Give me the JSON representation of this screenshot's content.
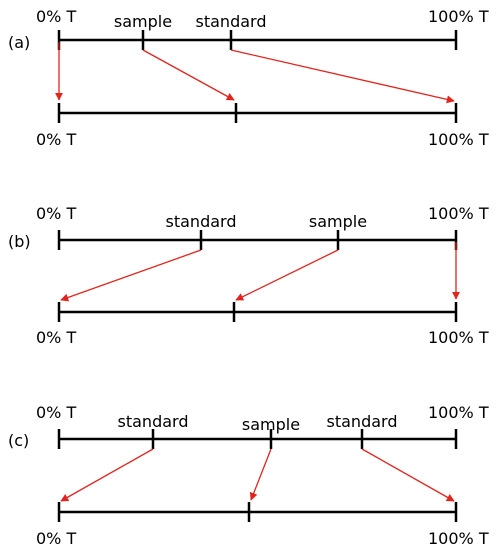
{
  "panels": [
    {
      "label": "(a)",
      "top": {
        "left": "0% T",
        "right": "100% T",
        "marks": [
          "sample",
          "standard"
        ]
      },
      "bottom": {
        "left": "0% T",
        "right": "100% T"
      }
    },
    {
      "label": "(b)",
      "top": {
        "left": "0% T",
        "right": "100% T",
        "marks": [
          "standard",
          "sample"
        ]
      },
      "bottom": {
        "left": "0% T",
        "right": "100% T"
      }
    },
    {
      "label": "(c)",
      "top": {
        "left": "0% T",
        "right": "100% T",
        "marks": [
          "standard",
          "sample",
          "standard"
        ]
      },
      "bottom": {
        "left": "0% T",
        "right": "100% T"
      }
    }
  ],
  "colors": {
    "line": "#000000",
    "arrow": "#e3231d"
  }
}
